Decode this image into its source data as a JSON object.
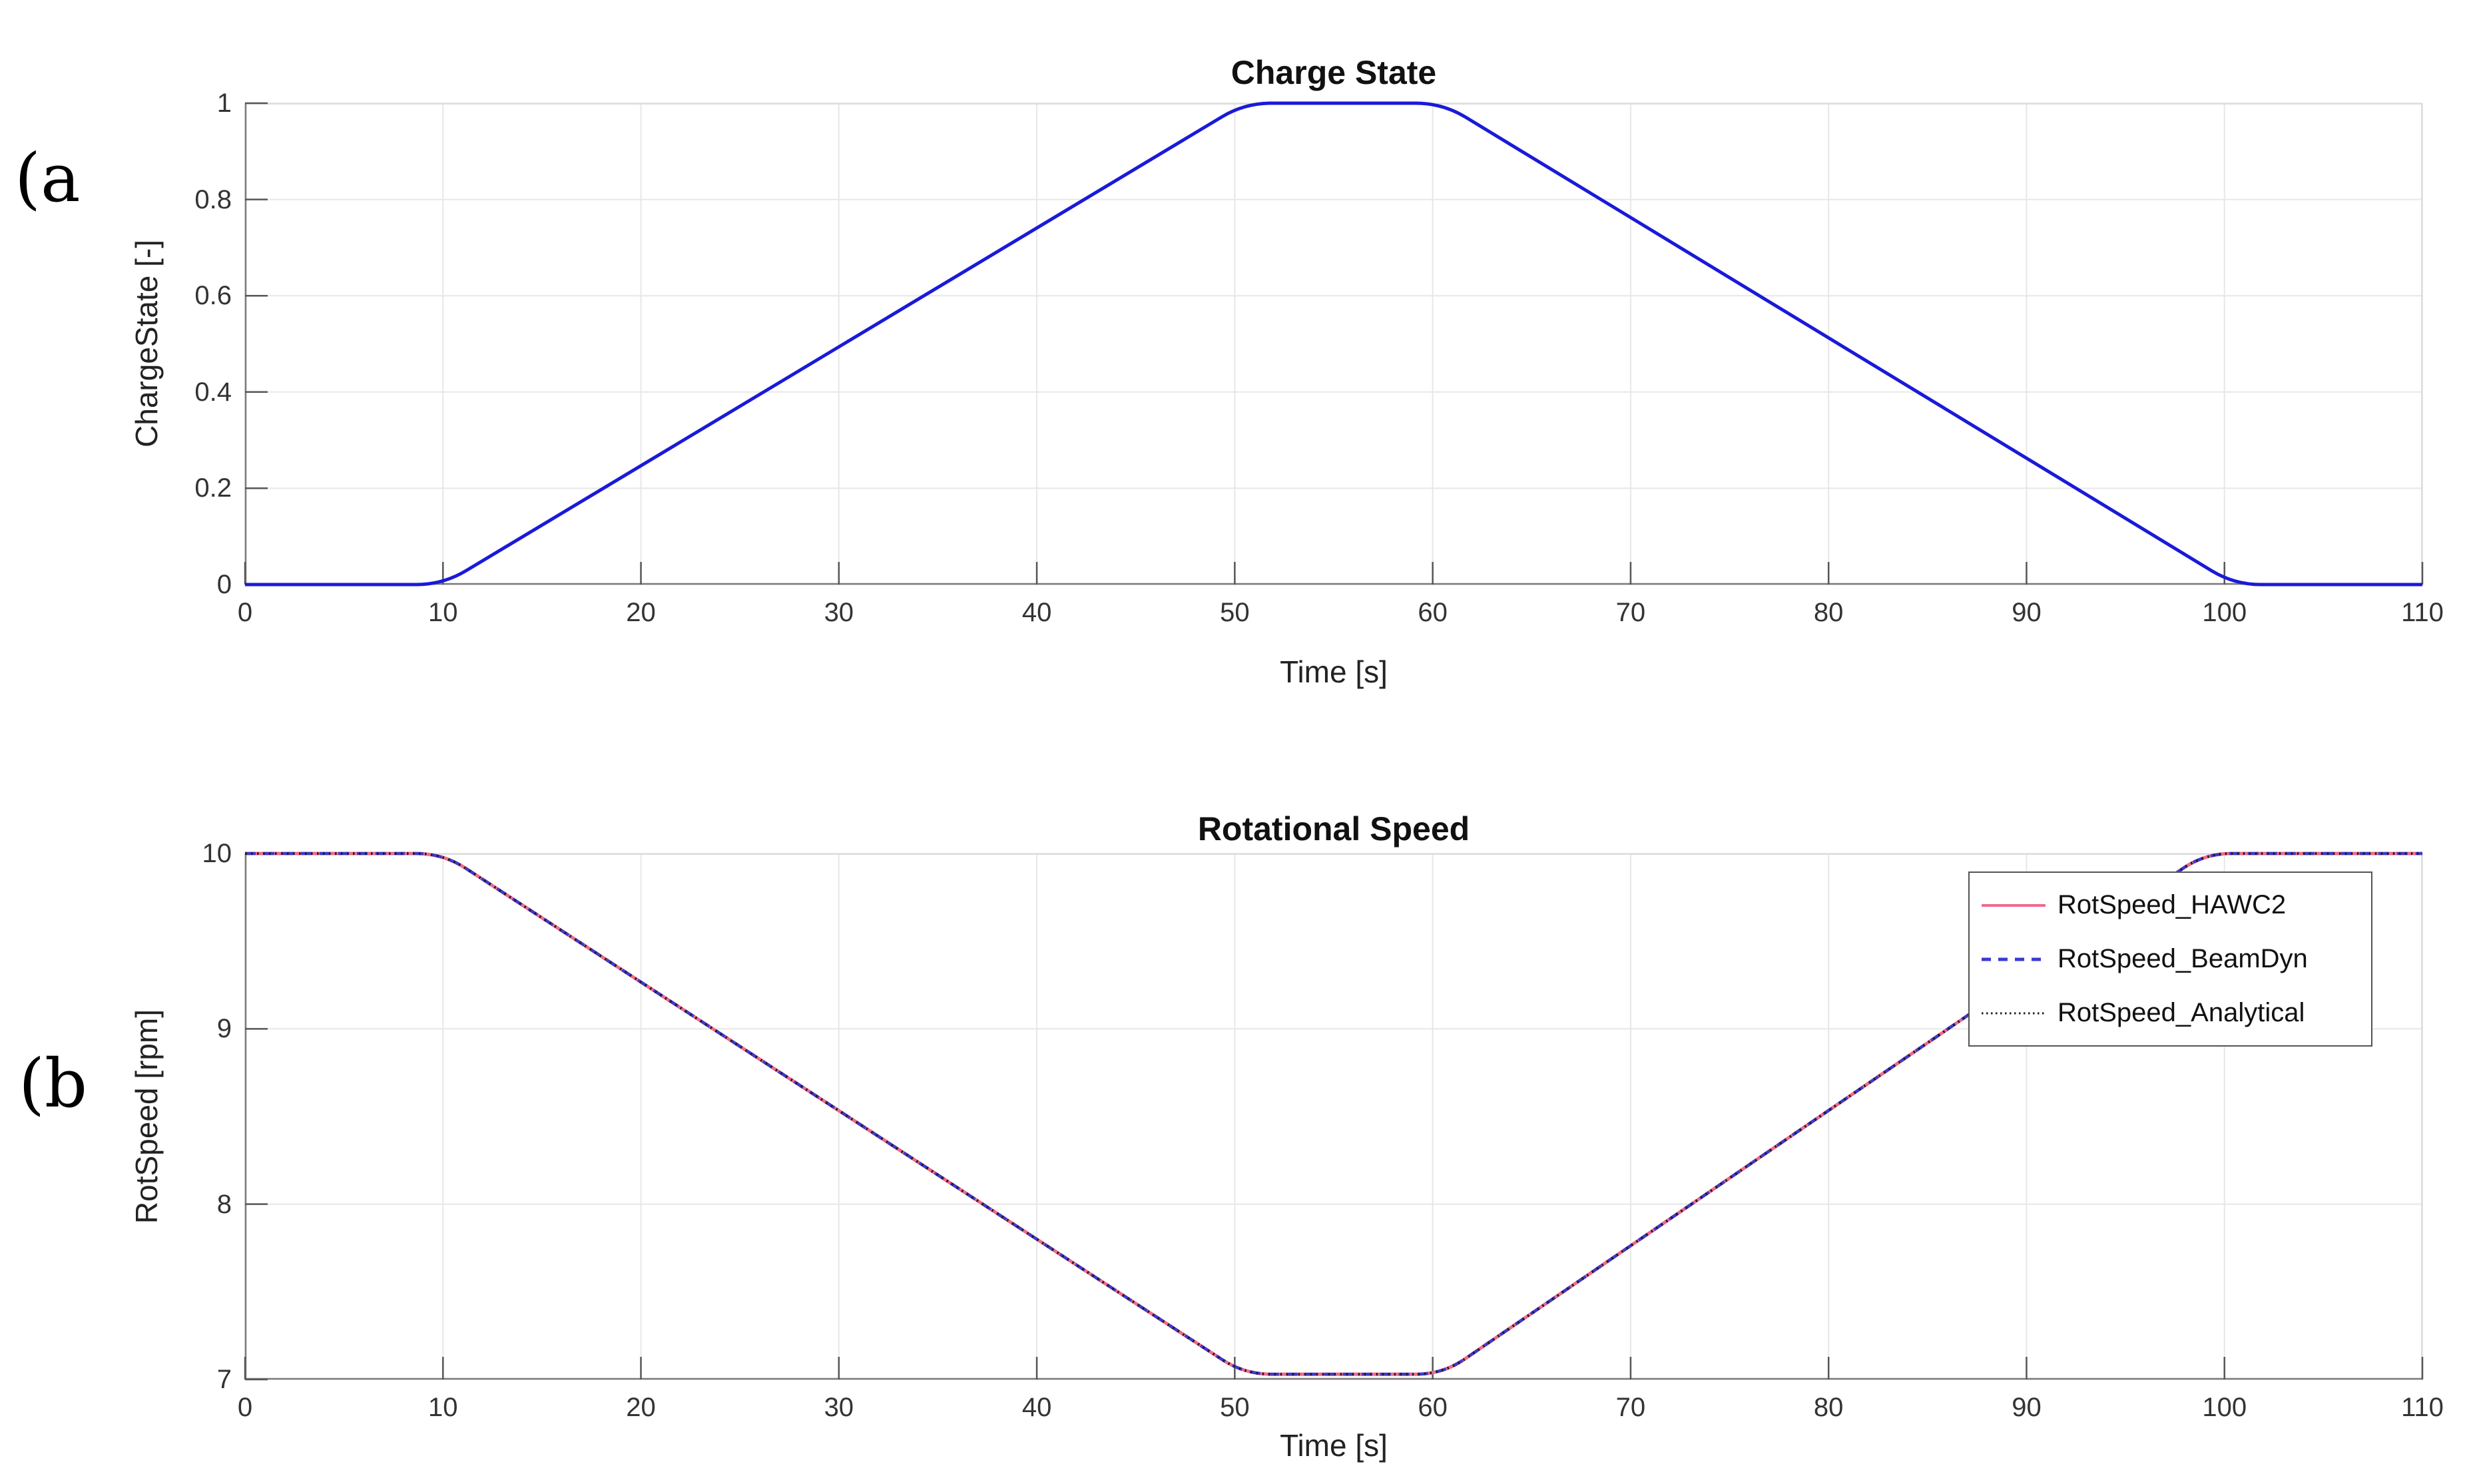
{
  "figure": {
    "panel_a_label": "(a",
    "panel_b_label": "(b"
  },
  "colors": {
    "background": "#ffffff",
    "axis_spine": "#7d7d7d",
    "box_frame_light": "#dddddd",
    "tick_mark": "#565656",
    "grid": "#e7e7e7",
    "charge_state_line": "#1a1ad8",
    "hawc2_line": "#f2688e",
    "beamdyn_line": "#3a3ad2",
    "analytical_line": "#1c1c1c",
    "legend_border": "#545454"
  },
  "chart_data": [
    {
      "id": "charge_state",
      "type": "line",
      "title": "Charge State",
      "xlabel": "Time [s]",
      "ylabel": "ChargeState [-]",
      "xlim": [
        0,
        110
      ],
      "ylim": [
        0,
        1
      ],
      "xticks": [
        0,
        10,
        20,
        30,
        40,
        50,
        60,
        70,
        80,
        90,
        100,
        110
      ],
      "yticks": [
        0,
        0.2,
        0.4,
        0.6,
        0.8,
        1
      ],
      "grid": true,
      "legend": null,
      "series": [
        {
          "name": "ChargeState",
          "color": "#1a1ad8",
          "style": "solid",
          "points": [
            [
              0,
              0
            ],
            [
              10,
              0
            ],
            [
              50.5,
              1
            ],
            [
              60.5,
              1
            ],
            [
              100.5,
              0
            ],
            [
              110,
              0
            ]
          ]
        }
      ]
    },
    {
      "id": "rotational_speed",
      "type": "line",
      "title": "Rotational Speed",
      "xlabel": "Time [s]",
      "ylabel": "RotSpeed [rpm]",
      "xlim": [
        0,
        110
      ],
      "ylim": [
        7,
        10
      ],
      "xticks": [
        0,
        10,
        20,
        30,
        40,
        50,
        60,
        70,
        80,
        90,
        100,
        110
      ],
      "yticks": [
        7,
        8,
        9,
        10
      ],
      "grid": true,
      "legend": {
        "position": "northeast"
      },
      "series": [
        {
          "name": "RotSpeed_HAWC2",
          "color": "#f2688e",
          "style": "solid",
          "points": [
            [
              0,
              10
            ],
            [
              10,
              10
            ],
            [
              50.5,
              7.03
            ],
            [
              60.5,
              7.03
            ],
            [
              99,
              10
            ],
            [
              110,
              10
            ]
          ]
        },
        {
          "name": "RotSpeed_BeamDyn",
          "color": "#3a3ad2",
          "style": "dashed",
          "points": [
            [
              0,
              10
            ],
            [
              10,
              10
            ],
            [
              50.5,
              7.03
            ],
            [
              60.5,
              7.03
            ],
            [
              99,
              10
            ],
            [
              110,
              10
            ]
          ]
        },
        {
          "name": "RotSpeed_Analytical",
          "color": "#1c1c1c",
          "style": "dotted",
          "points": [
            [
              0,
              10
            ],
            [
              10,
              10
            ],
            [
              50.5,
              7.03
            ],
            [
              60.5,
              7.03
            ],
            [
              99,
              10
            ],
            [
              110,
              10
            ]
          ]
        }
      ]
    }
  ]
}
